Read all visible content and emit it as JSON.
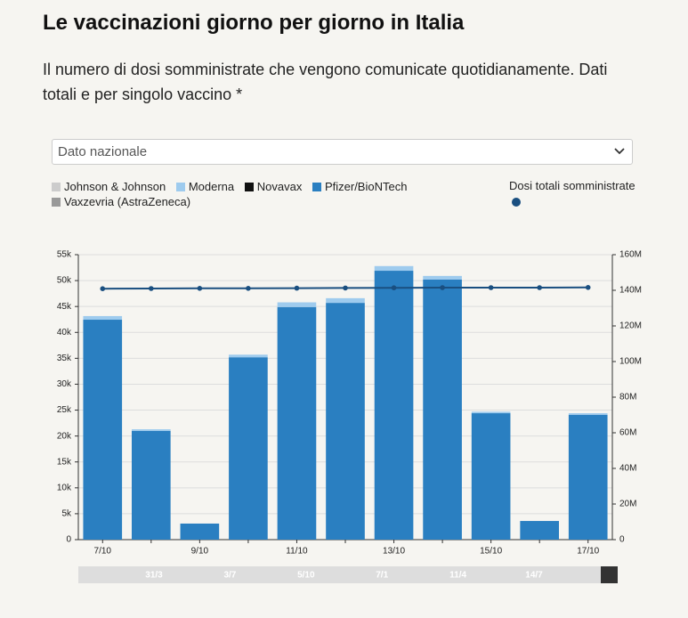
{
  "header": {
    "title": "Le vaccinazioni giorno per giorno in Italia",
    "subtitle": "Il numero di dosi somministrate che vengono comunicate quotidianamente. Dati totali e per singolo vaccino *"
  },
  "dropdown": {
    "selected": "Dato nazionale"
  },
  "chart_data": {
    "type": "bar",
    "stacked": true,
    "categories": [
      "7/10",
      null,
      "9/10",
      null,
      "11/10",
      null,
      "13/10",
      null,
      "15/10",
      null,
      "17/10"
    ],
    "series": [
      {
        "name": "Johnson & Johnson",
        "color": "#cccccc",
        "values": [
          0,
          0,
          0,
          0,
          0,
          0,
          0,
          0,
          0,
          0,
          0
        ]
      },
      {
        "name": "Moderna",
        "color": "#9ecbee",
        "values": [
          700,
          300,
          0,
          500,
          900,
          900,
          900,
          700,
          300,
          0,
          300
        ]
      },
      {
        "name": "Novavax",
        "color": "#111111",
        "values": [
          0,
          0,
          0,
          0,
          0,
          0,
          0,
          0,
          0,
          0,
          0
        ]
      },
      {
        "name": "Pfizer/BioNTech",
        "color": "#2a7fc1",
        "values": [
          42450,
          21000,
          3100,
          35200,
          44900,
          45700,
          51900,
          50200,
          24400,
          3600,
          24100
        ]
      },
      {
        "name": "Vaxzevria (AstraZeneca)",
        "color": "#999999",
        "values": [
          0,
          0,
          0,
          0,
          0,
          0,
          0,
          0,
          0,
          0,
          0
        ]
      },
      {
        "name": "Dosi totali somministrate",
        "type": "line",
        "axis": "y2",
        "color": "#1a4f80",
        "values": [
          140900000,
          141000000,
          141100000,
          141100000,
          141200000,
          141300000,
          141400000,
          141500000,
          141500000,
          141500000,
          141600000
        ]
      }
    ],
    "ylim": [
      0,
      55000
    ],
    "yticks": [
      0,
      {
        "value": 5000,
        "label": "5k"
      },
      {
        "value": 10000,
        "label": "10k"
      },
      {
        "value": 15000,
        "label": "15k"
      },
      {
        "value": 20000,
        "label": "20k"
      },
      {
        "value": 25000,
        "label": "25k"
      },
      {
        "value": 30000,
        "label": "30k"
      },
      {
        "value": 35000,
        "label": "35k"
      },
      {
        "value": 40000,
        "label": "40k"
      },
      {
        "value": 45000,
        "label": "45k"
      },
      {
        "value": 50000,
        "label": "50k"
      },
      {
        "value": 55000,
        "label": "55k"
      }
    ],
    "y2lim": [
      0,
      160000000
    ],
    "y2ticks": [
      0,
      {
        "value": 20000000,
        "label": "20M"
      },
      {
        "value": 40000000,
        "label": "40M"
      },
      {
        "value": 60000000,
        "label": "60M"
      },
      {
        "value": 80000000,
        "label": "80M"
      },
      {
        "value": 100000000,
        "label": "100M"
      },
      {
        "value": 120000000,
        "label": "120M"
      },
      {
        "value": 140000000,
        "label": "140M"
      },
      {
        "value": 160000000,
        "label": "160M"
      }
    ],
    "grid": true,
    "navigator_labels": [
      "31/3",
      "3/7",
      "5/10",
      "7/1",
      "11/4",
      "14/7"
    ]
  }
}
